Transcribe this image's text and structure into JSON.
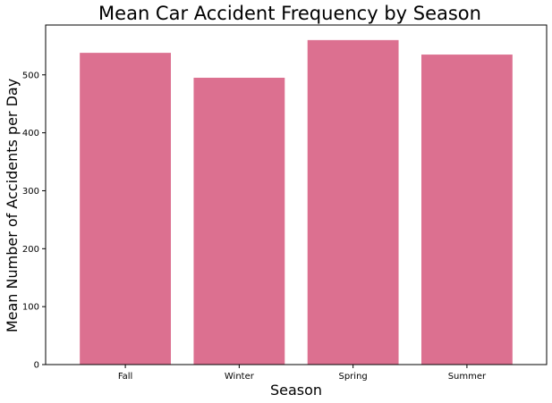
{
  "chart_data": {
    "type": "bar",
    "title": "Mean Car Accident Frequency by Season",
    "xlabel": "Season",
    "ylabel": "Mean Number of Accidents per Day",
    "categories": [
      "Fall",
      "Winter",
      "Spring",
      "Summer"
    ],
    "values": [
      538,
      495,
      560,
      535
    ],
    "ylim": [
      0,
      586
    ],
    "yticks": [
      0,
      100,
      200,
      300,
      400,
      500
    ],
    "bar_color": "#dc7090",
    "grid": false
  }
}
